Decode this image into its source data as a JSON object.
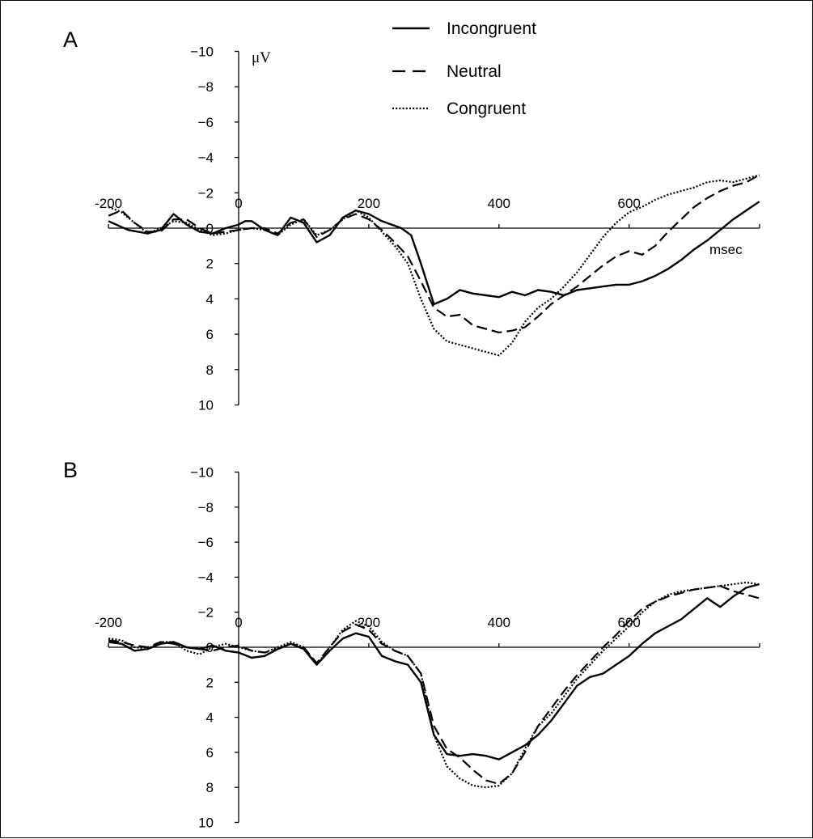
{
  "chart_data": [
    {
      "type": "line",
      "panel_label": "A",
      "xlabel": "msec",
      "ylabel": "μV",
      "xlim": [
        -200,
        800
      ],
      "ylim": [
        -10,
        10
      ],
      "y_inverted": true,
      "x_ticks": [
        -200,
        0,
        200,
        400,
        600
      ],
      "x_tick_labels": [
        "-200",
        "0",
        "200",
        "400",
        "600"
      ],
      "y_ticks": [
        -10,
        -8,
        -6,
        -4,
        -2,
        0,
        2,
        4,
        6,
        8,
        10
      ],
      "y_tick_labels": [
        "−10",
        "−8",
        "−6",
        "−4",
        "−2",
        "0",
        "2",
        "4",
        "6",
        "8",
        "10"
      ],
      "grid": false,
      "legend": "top-center",
      "series": [
        {
          "name": "Incongruent",
          "style": "solid",
          "x": [
            -200,
            -170,
            -140,
            -120,
            -100,
            -80,
            -60,
            -40,
            -20,
            0,
            10,
            20,
            40,
            60,
            80,
            100,
            120,
            140,
            160,
            180,
            200,
            220,
            250,
            265,
            280,
            300,
            320,
            340,
            360,
            380,
            400,
            420,
            440,
            460,
            480,
            500,
            520,
            540,
            560,
            580,
            600,
            620,
            640,
            660,
            680,
            700,
            720,
            740,
            760,
            780,
            800
          ],
          "y": [
            -0.4,
            0.1,
            0.3,
            0.1,
            -0.8,
            -0.2,
            0.2,
            0.3,
            0,
            -0.2,
            -0.4,
            -0.4,
            0.1,
            0.4,
            -0.6,
            -0.3,
            0.8,
            0.4,
            -0.6,
            -1,
            -0.8,
            -0.4,
            0,
            0.4,
            2,
            4.3,
            4,
            3.5,
            3.7,
            3.8,
            3.9,
            3.6,
            3.8,
            3.5,
            3.6,
            3.8,
            3.5,
            3.4,
            3.3,
            3.2,
            3.2,
            3,
            2.7,
            2.3,
            1.8,
            1.2,
            0.7,
            0.1,
            -0.5,
            -1,
            -1.5
          ]
        },
        {
          "name": "Neutral",
          "style": "dashed",
          "x": [
            -200,
            -180,
            -160,
            -140,
            -120,
            -100,
            -80,
            -60,
            -40,
            -20,
            0,
            20,
            40,
            60,
            80,
            100,
            120,
            140,
            160,
            180,
            200,
            220,
            240,
            260,
            280,
            300,
            320,
            340,
            360,
            380,
            400,
            420,
            440,
            460,
            480,
            500,
            520,
            540,
            560,
            580,
            600,
            620,
            640,
            660,
            680,
            700,
            720,
            740,
            760,
            780,
            800
          ],
          "y": [
            -0.7,
            -1,
            -0.3,
            0.2,
            0.2,
            -0.5,
            -0.5,
            0,
            0.3,
            0.2,
            0.1,
            0,
            0,
            0.3,
            -0.3,
            -0.5,
            0.5,
            0.1,
            -0.5,
            -0.8,
            -0.5,
            0.1,
            0.8,
            1.6,
            3,
            4.5,
            5,
            4.9,
            5.5,
            5.7,
            5.9,
            5.8,
            5.6,
            5,
            4.3,
            3.8,
            3.3,
            2.7,
            2.1,
            1.6,
            1.3,
            1.5,
            1,
            0.2,
            -0.5,
            -1.2,
            -1.7,
            -2.1,
            -2.4,
            -2.6,
            -3
          ]
        },
        {
          "name": "Congruent",
          "style": "dotted",
          "x": [
            -200,
            -180,
            -160,
            -140,
            -120,
            -100,
            -80,
            -60,
            -40,
            -20,
            0,
            20,
            40,
            60,
            80,
            100,
            120,
            140,
            160,
            180,
            200,
            220,
            240,
            260,
            280,
            300,
            320,
            340,
            360,
            380,
            400,
            420,
            440,
            460,
            480,
            500,
            520,
            540,
            560,
            580,
            600,
            620,
            640,
            660,
            680,
            700,
            720,
            740,
            760,
            780,
            800
          ],
          "y": [
            -1.2,
            -0.9,
            -0.3,
            0.3,
            0,
            -0.4,
            -0.3,
            0.1,
            0.4,
            0.3,
            0.1,
            0,
            0.1,
            0.4,
            -0.2,
            -0.5,
            0.4,
            0.1,
            -0.5,
            -1,
            -0.6,
            0.2,
            1,
            2,
            4,
            5.7,
            6.4,
            6.6,
            6.8,
            7,
            7.2,
            6.5,
            5.3,
            4.5,
            4,
            3.3,
            2.5,
            1.5,
            0.5,
            -0.3,
            -0.9,
            -1.2,
            -1.6,
            -1.9,
            -2.1,
            -2.3,
            -2.6,
            -2.7,
            -2.6,
            -2.8,
            -3
          ]
        }
      ]
    },
    {
      "type": "line",
      "panel_label": "B",
      "xlabel": "",
      "ylabel": "",
      "xlim": [
        -200,
        800
      ],
      "ylim": [
        -10,
        10
      ],
      "y_inverted": true,
      "x_ticks": [
        -200,
        0,
        200,
        400,
        600
      ],
      "x_tick_labels": [
        "-200",
        "0",
        "200",
        "400",
        "600"
      ],
      "y_ticks": [
        -10,
        -8,
        -6,
        -4,
        -2,
        0,
        2,
        4,
        6,
        8,
        10
      ],
      "y_tick_labels": [
        "−10",
        "−8",
        "−6",
        "−4",
        "−2",
        "0",
        "2",
        "4",
        "6",
        "8",
        "10"
      ],
      "grid": false,
      "series": [
        {
          "name": "Incongruent",
          "style": "solid",
          "x": [
            -200,
            -180,
            -160,
            -140,
            -120,
            -100,
            -80,
            -60,
            -40,
            -20,
            0,
            20,
            40,
            60,
            80,
            100,
            120,
            140,
            160,
            180,
            200,
            220,
            240,
            260,
            280,
            300,
            320,
            340,
            360,
            380,
            400,
            420,
            440,
            460,
            480,
            500,
            520,
            540,
            560,
            580,
            600,
            620,
            640,
            660,
            680,
            700,
            720,
            740,
            760,
            780,
            800
          ],
          "y": [
            -0.3,
            -0.2,
            0.2,
            0.1,
            -0.2,
            -0.3,
            0,
            0.1,
            -0.1,
            0.2,
            0.3,
            0.6,
            0.5,
            0.1,
            -0.2,
            0.1,
            1,
            0.2,
            -0.5,
            -0.8,
            -0.6,
            0.5,
            0.8,
            1,
            2,
            5,
            6.1,
            6.2,
            6.1,
            6.2,
            6.4,
            6,
            5.6,
            5,
            4.2,
            3.2,
            2.2,
            1.7,
            1.5,
            1,
            0.5,
            -0.2,
            -0.8,
            -1.2,
            -1.6,
            -2.2,
            -2.8,
            -2.3,
            -2.9,
            -3.4,
            -3.6
          ]
        },
        {
          "name": "Neutral",
          "style": "dashed",
          "x": [
            -200,
            -180,
            -160,
            -140,
            -120,
            -100,
            -80,
            -60,
            -40,
            -20,
            0,
            20,
            40,
            60,
            80,
            100,
            120,
            140,
            160,
            180,
            200,
            220,
            240,
            260,
            280,
            300,
            320,
            340,
            360,
            380,
            400,
            420,
            440,
            460,
            480,
            500,
            520,
            540,
            560,
            580,
            600,
            620,
            640,
            660,
            680,
            700,
            720,
            740,
            760,
            780,
            800
          ],
          "y": [
            -0.4,
            -0.3,
            -0.1,
            0,
            -0.3,
            -0.2,
            0,
            0.1,
            0.2,
            0,
            -0.1,
            0.2,
            0.3,
            0.1,
            -0.2,
            0,
            0.9,
            0,
            -0.9,
            -1.3,
            -1,
            -0.2,
            0.2,
            0.5,
            1.5,
            4.5,
            5.8,
            6.3,
            7,
            7.6,
            7.8,
            7.2,
            6,
            4.5,
            3.5,
            2.5,
            1.6,
            0.8,
            0,
            -0.7,
            -1.5,
            -2.2,
            -2.6,
            -2.9,
            -3.1,
            -3.3,
            -3.4,
            -3.5,
            -3.2,
            -3,
            -2.8
          ]
        },
        {
          "name": "Congruent",
          "style": "dotted",
          "x": [
            -200,
            -180,
            -160,
            -140,
            -120,
            -100,
            -80,
            -60,
            -40,
            -20,
            0,
            20,
            40,
            60,
            80,
            100,
            120,
            140,
            160,
            180,
            200,
            220,
            240,
            260,
            280,
            300,
            320,
            340,
            360,
            380,
            400,
            420,
            440,
            460,
            480,
            500,
            520,
            540,
            560,
            580,
            600,
            620,
            640,
            660,
            680,
            700,
            720,
            740,
            760,
            780,
            800
          ],
          "y": [
            -0.5,
            -0.4,
            0,
            0.1,
            -0.3,
            -0.3,
            0.2,
            0.4,
            0,
            -0.2,
            0,
            0.2,
            0.3,
            0,
            -0.3,
            0,
            1,
            0,
            -1,
            -1.5,
            -1.2,
            -0.3,
            0.2,
            0.5,
            1.5,
            5,
            6.8,
            7.5,
            7.9,
            8,
            7.9,
            7.2,
            5.8,
            4.5,
            3.8,
            2.8,
            1.8,
            1,
            0.2,
            -0.5,
            -1.2,
            -2,
            -2.6,
            -3,
            -3.2,
            -3.3,
            -3.4,
            -3.5,
            -3.6,
            -3.7,
            -3.6
          ]
        }
      ]
    }
  ]
}
